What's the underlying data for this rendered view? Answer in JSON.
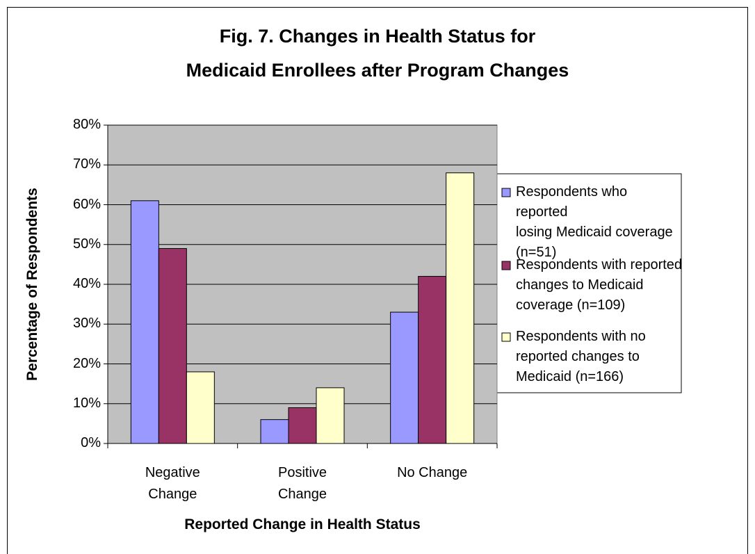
{
  "chart_data": {
    "type": "bar",
    "title": "Fig. 7. Changes in Health Status for\nMedicaid Enrollees after Program Changes",
    "x_label": "Reported Change in Health Status",
    "y_label": "Percentage of Respondents",
    "categories": [
      "Negative\nChange",
      "Positive\nChange",
      "No Change"
    ],
    "series": [
      {
        "name": "Respondents who reported\nlosing Medicaid coverage\n(n=51)",
        "color": "#9999ff",
        "values": [
          61,
          6,
          33
        ]
      },
      {
        "name": "Respondents with reported\nchanges to Medicaid\ncoverage (n=109)",
        "color": "#993366",
        "values": [
          49,
          9,
          42
        ]
      },
      {
        "name": "Respondents with no\nreported changes to\nMedicaid (n=166)",
        "color": "#ffffcc",
        "values": [
          18,
          14,
          68
        ]
      }
    ],
    "ylim": [
      0,
      80
    ],
    "yticks": [
      {
        "value": 0,
        "label": "0%"
      },
      {
        "value": 10,
        "label": "10%"
      },
      {
        "value": 20,
        "label": "20%"
      },
      {
        "value": 30,
        "label": "30%"
      },
      {
        "value": 40,
        "label": "40%"
      },
      {
        "value": 50,
        "label": "50%"
      },
      {
        "value": 60,
        "label": "60%"
      },
      {
        "value": 70,
        "label": "70%"
      },
      {
        "value": 80,
        "label": "80%"
      }
    ],
    "grid": true,
    "legend": "right",
    "plot_background": "#c0c0c0"
  }
}
